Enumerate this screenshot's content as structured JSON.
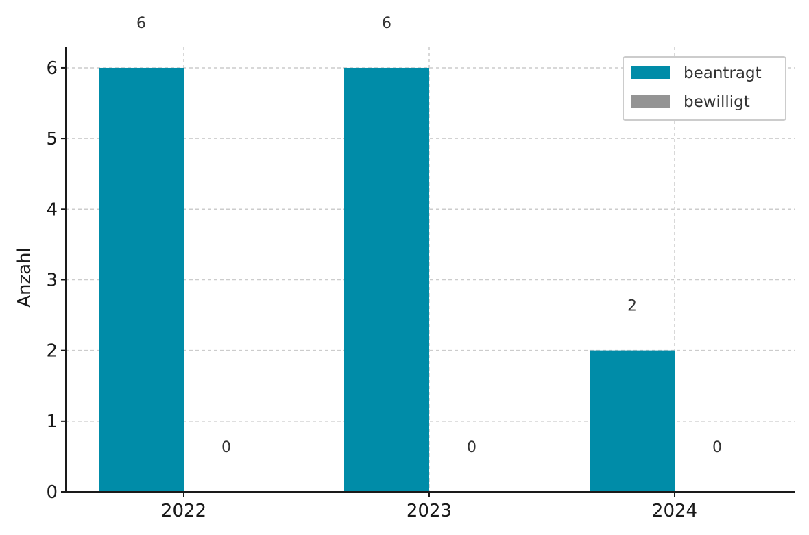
{
  "chart_data": {
    "type": "bar",
    "title": "",
    "xlabel": "",
    "ylabel": "Anzahl",
    "categories": [
      "2022",
      "2023",
      "2024"
    ],
    "series": [
      {
        "name": "beantragt",
        "color": "#008ca8",
        "values": [
          6,
          6,
          2
        ]
      },
      {
        "name": "bewilligt",
        "color": "#949494",
        "values": [
          0,
          0,
          0
        ]
      }
    ],
    "ylim": [
      0,
      6.3
    ],
    "yticks": [
      0,
      1,
      2,
      3,
      4,
      5,
      6
    ],
    "grid": true,
    "legend_position": "top-right"
  }
}
